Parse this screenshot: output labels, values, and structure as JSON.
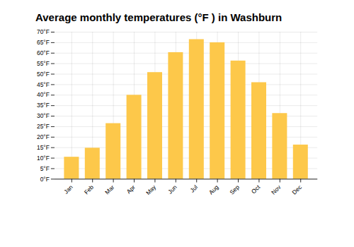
{
  "chart_data": {
    "type": "bar",
    "title": "Average monthly temperatures (°F ) in Washburn",
    "categories": [
      "Jan",
      "Feb",
      "Mar",
      "Apr",
      "May",
      "Jun",
      "Jul",
      "Aug",
      "Sep",
      "Oct",
      "Nov",
      "Dec"
    ],
    "values": [
      10.5,
      14.8,
      26.5,
      40.0,
      50.8,
      60.3,
      66.5,
      65.0,
      56.3,
      46.0,
      31.3,
      16.3
    ],
    "color": "#FDC84A",
    "ylim": [
      0,
      70
    ],
    "yticks": [
      {
        "value": 0,
        "label": "0°F"
      },
      {
        "value": 5,
        "label": "5°F"
      },
      {
        "value": 10,
        "label": "10°F"
      },
      {
        "value": 15,
        "label": "15°F"
      },
      {
        "value": 20,
        "label": "20°F"
      },
      {
        "value": 25,
        "label": "25°F"
      },
      {
        "value": 30,
        "label": "30°F"
      },
      {
        "value": 35,
        "label": "35°F"
      },
      {
        "value": 40,
        "label": "40°F"
      },
      {
        "value": 45,
        "label": "45°F"
      },
      {
        "value": 50,
        "label": "50°F"
      },
      {
        "value": 55,
        "label": "55°F"
      },
      {
        "value": 60,
        "label": "60°F"
      },
      {
        "value": 65,
        "label": "65°F"
      },
      {
        "value": 70,
        "label": "70°F"
      }
    ],
    "grid": true
  }
}
